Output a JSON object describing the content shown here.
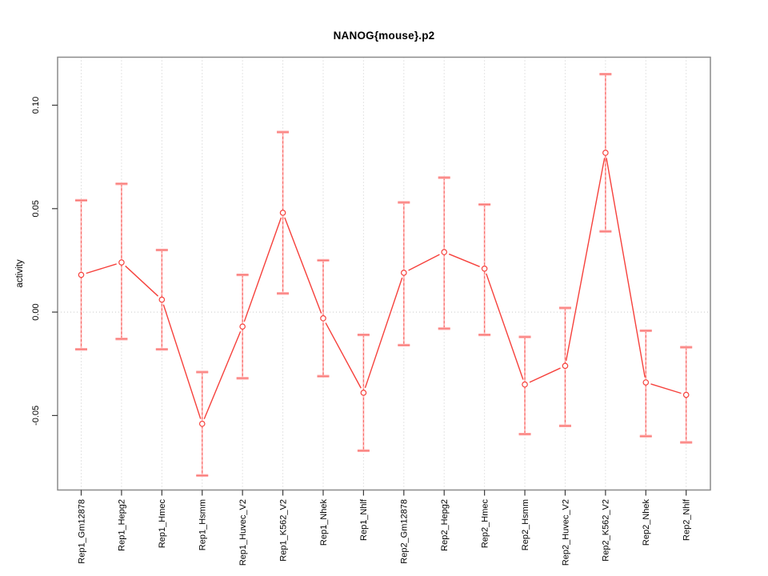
{
  "page": {
    "background": "#ffffff"
  },
  "chart_data": {
    "type": "line",
    "title": "NANOG{mouse}.p2",
    "xlabel": "",
    "ylabel": "activity",
    "legend": "none",
    "grid": "dotted vertical gridline at each category; dotted horizontal gridline at y=0",
    "categories": [
      "Rep1_Gm12878",
      "Rep1_Hepg2",
      "Rep1_Hmec",
      "Rep1_Hsmm",
      "Rep1_Huvec_V2",
      "Rep1_K562_V2",
      "Rep1_Nhek",
      "Rep1_Nhlf",
      "Rep2_Gm12878",
      "Rep2_Hepg2",
      "Rep2_Hmec",
      "Rep2_Hsmm",
      "Rep2_Huvec_V2",
      "Rep2_K562_V2",
      "Rep2_Nhek",
      "Rep2_Nhlf"
    ],
    "series": [
      {
        "name": "activity",
        "values": [
          0.018,
          0.024,
          0.006,
          -0.054,
          -0.007,
          0.048,
          -0.003,
          -0.039,
          0.019,
          0.029,
          0.021,
          -0.035,
          -0.026,
          0.077,
          -0.034,
          -0.04
        ],
        "error_upper": [
          0.054,
          0.062,
          0.03,
          -0.029,
          0.018,
          0.087,
          0.025,
          -0.011,
          0.053,
          0.065,
          0.052,
          -0.012,
          0.002,
          0.115,
          -0.009,
          -0.017
        ],
        "error_lower": [
          -0.018,
          -0.013,
          -0.018,
          -0.079,
          -0.032,
          0.009,
          -0.031,
          -0.067,
          -0.016,
          -0.008,
          -0.011,
          -0.059,
          -0.055,
          0.039,
          -0.06,
          -0.063
        ]
      }
    ],
    "yticks": [
      -0.05,
      0.0,
      0.05,
      0.1
    ],
    "ytick_labels": [
      "-0.05",
      "0.00",
      "0.05",
      "0.10"
    ],
    "ylim": [
      -0.086,
      0.1232
    ],
    "marker": "open-circle",
    "colors": {
      "series_line": "#f6413c",
      "marker_stroke": "#f6413c",
      "marker_fill": "#ffffff",
      "error_shaft_solid": "#ffb6b6",
      "error_shaft_dash": "#f65a55",
      "error_cap_fill": "#ffacac",
      "error_cap_line": "#f66560",
      "gridline": "#c9c9c9",
      "plot_border": "#8b8b8b",
      "tick_mark": "#3a3a3a",
      "text": "#000000",
      "background": "#ffffff"
    }
  }
}
